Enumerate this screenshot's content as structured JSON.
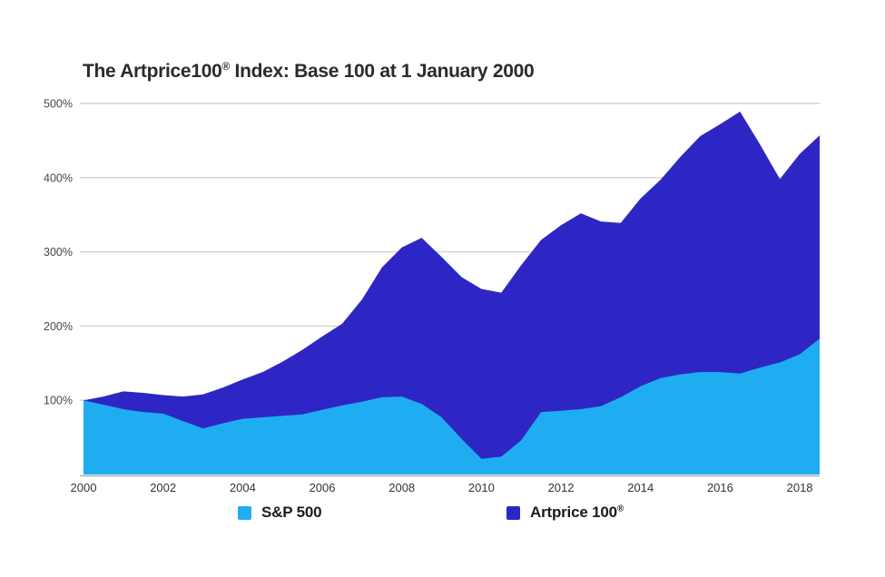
{
  "title": {
    "part1": "The Artprice100",
    "sup": "®",
    "part2": " Index: Base 100 at 1 January 2000"
  },
  "legend": {
    "items": [
      {
        "id": "sp500",
        "label": "S&P 500",
        "sup": "",
        "color": "#1FADF2"
      },
      {
        "id": "artprice",
        "label": "Artprice 100",
        "sup": "®",
        "color": "#2E26C4"
      }
    ]
  },
  "axes": {
    "y_tick_labels": [
      "100%",
      "200%",
      "300%",
      "400%",
      "500%"
    ],
    "y_tick_values": [
      100,
      200,
      300,
      400,
      500
    ],
    "x_tick_labels": [
      "2000",
      "2002",
      "2004",
      "2006",
      "2008",
      "2010",
      "2012",
      "2014",
      "2016",
      "2018"
    ],
    "x_tick_values": [
      2000,
      2002,
      2004,
      2006,
      2008,
      2010,
      2012,
      2014,
      2016,
      2018
    ]
  },
  "colors": {
    "sp500": "#1FADF2",
    "artprice": "#2E26C4",
    "grid": "#d2d2d2",
    "axis_line": "#a9a9a9",
    "title_text": "#2b2b2b",
    "tick_text": "#454545"
  },
  "chart_data": {
    "type": "area",
    "title": "The Artprice100® Index: Base 100 at 1 January 2000",
    "xlabel": "",
    "ylabel": "",
    "xlim": [
      2000,
      2018.5
    ],
    "ylim": [
      0,
      500
    ],
    "grid": "horizontal",
    "legend_position": "bottom",
    "x": [
      2000,
      2000.5,
      2001,
      2001.5,
      2002,
      2002.5,
      2003,
      2003.5,
      2004,
      2004.5,
      2005,
      2005.5,
      2006,
      2006.5,
      2007,
      2007.5,
      2008,
      2008.5,
      2009,
      2009.5,
      2010,
      2010.5,
      2011,
      2011.5,
      2012,
      2012.5,
      2013,
      2013.5,
      2014,
      2014.5,
      2015,
      2015.5,
      2016,
      2016.5,
      2017,
      2017.5,
      2018,
      2018.5
    ],
    "series": [
      {
        "name": "Artprice 100®",
        "unit": "%",
        "values": [
          100,
          105,
          112,
          110,
          107,
          105,
          108,
          117,
          128,
          138,
          152,
          168,
          186,
          203,
          236,
          279,
          306,
          319,
          293,
          266,
          250,
          245,
          282,
          316,
          336,
          352,
          341,
          339,
          372,
          397,
          428,
          456,
          472,
          489,
          445,
          398,
          432,
          457
        ]
      },
      {
        "name": "S&P 500",
        "unit": "%",
        "values": [
          100,
          94,
          88,
          84,
          82,
          72,
          62,
          69,
          75,
          77,
          79,
          81,
          87,
          93,
          98,
          104,
          105,
          95,
          77,
          48,
          21,
          24,
          46,
          84,
          86,
          88,
          92,
          104,
          119,
          130,
          135,
          138,
          138,
          136,
          144,
          151,
          162,
          183
        ]
      }
    ]
  }
}
